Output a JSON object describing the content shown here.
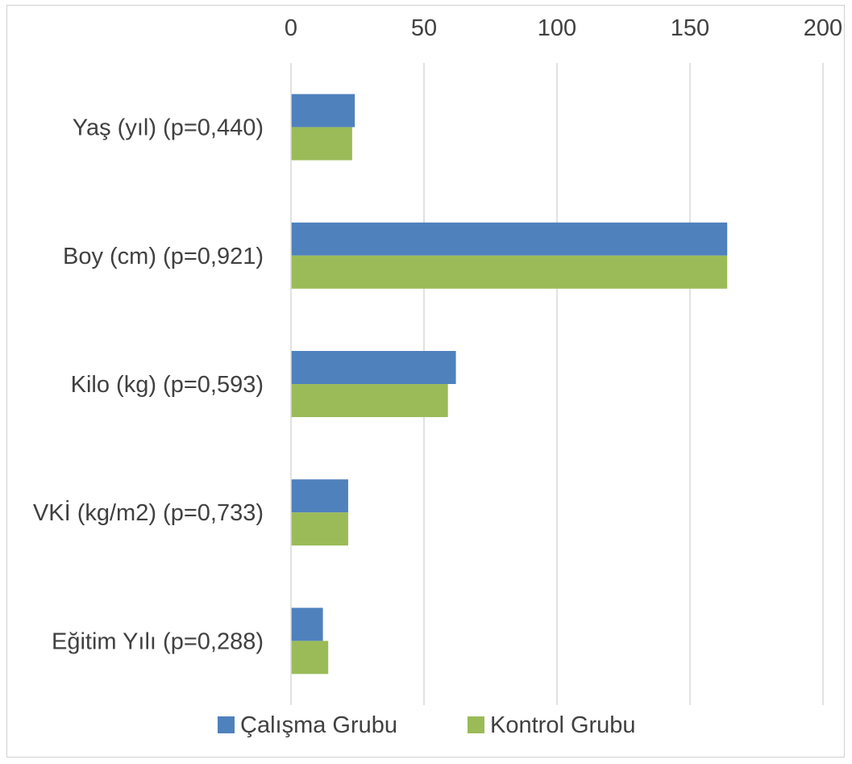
{
  "chart_data": {
    "type": "bar",
    "orientation": "horizontal",
    "categories": [
      "Yaş (yıl) (p=0,440)",
      "Boy (cm) (p=0,921)",
      "Kilo (kg) (p=0,593)",
      "VKİ (kg/m2) (p=0,733)",
      "Eğitim Yılı (p=0,288)"
    ],
    "series": [
      {
        "name": "Çalışma Grubu",
        "color": "#4f81bd",
        "values": [
          24,
          164,
          62,
          21.5,
          12
        ]
      },
      {
        "name": "Kontrol Grubu",
        "color": "#9bbb59",
        "values": [
          23,
          164,
          59,
          21.5,
          14
        ]
      }
    ],
    "xlim": [
      0,
      200
    ],
    "xticks": [
      "0",
      "50",
      "100",
      "150",
      "200"
    ],
    "axis_position": "top",
    "grid": true,
    "legend_position": "bottom"
  }
}
